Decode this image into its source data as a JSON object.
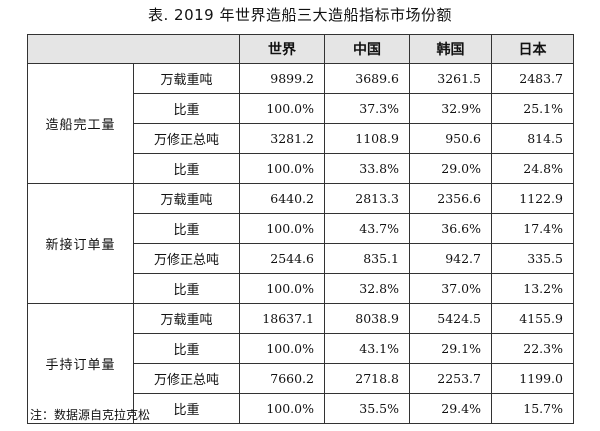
{
  "title": "表. 2019 年世界造船三大造船指标市场份额",
  "columns": [
    "世界",
    "中国",
    "韩国",
    "日本"
  ],
  "groups": [
    {
      "name": "造船完工量",
      "rows": [
        {
          "metric": "万载重吨",
          "values": [
            "9899.2",
            "3689.6",
            "3261.5",
            "2483.7"
          ]
        },
        {
          "metric": "比重",
          "values": [
            "100.0%",
            "37.3%",
            "32.9%",
            "25.1%"
          ]
        },
        {
          "metric": "万修正总吨",
          "values": [
            "3281.2",
            "1108.9",
            "950.6",
            "814.5"
          ]
        },
        {
          "metric": "比重",
          "values": [
            "100.0%",
            "33.8%",
            "29.0%",
            "24.8%"
          ]
        }
      ]
    },
    {
      "name": "新接订单量",
      "rows": [
        {
          "metric": "万载重吨",
          "values": [
            "6440.2",
            "2813.3",
            "2356.6",
            "1122.9"
          ]
        },
        {
          "metric": "比重",
          "values": [
            "100.0%",
            "43.7%",
            "36.6%",
            "17.4%"
          ]
        },
        {
          "metric": "万修正总吨",
          "values": [
            "2544.6",
            "835.1",
            "942.7",
            "335.5"
          ]
        },
        {
          "metric": "比重",
          "values": [
            "100.0%",
            "32.8%",
            "37.0%",
            "13.2%"
          ]
        }
      ]
    },
    {
      "name": "手持订单量",
      "rows": [
        {
          "metric": "万载重吨",
          "values": [
            "18637.1",
            "8038.9",
            "5424.5",
            "4155.9"
          ]
        },
        {
          "metric": "比重",
          "values": [
            "100.0%",
            "43.1%",
            "29.1%",
            "22.3%"
          ]
        },
        {
          "metric": "万修正总吨",
          "values": [
            "7660.2",
            "2718.8",
            "2253.7",
            "1199.0"
          ]
        },
        {
          "metric": "比重",
          "values": [
            "100.0%",
            "35.5%",
            "29.4%",
            "15.7%"
          ]
        }
      ]
    }
  ],
  "note": "注：数据源自克拉克松",
  "colors": {
    "header_bg": "#e5e5e5",
    "border": "#333333",
    "text": "#111111"
  }
}
